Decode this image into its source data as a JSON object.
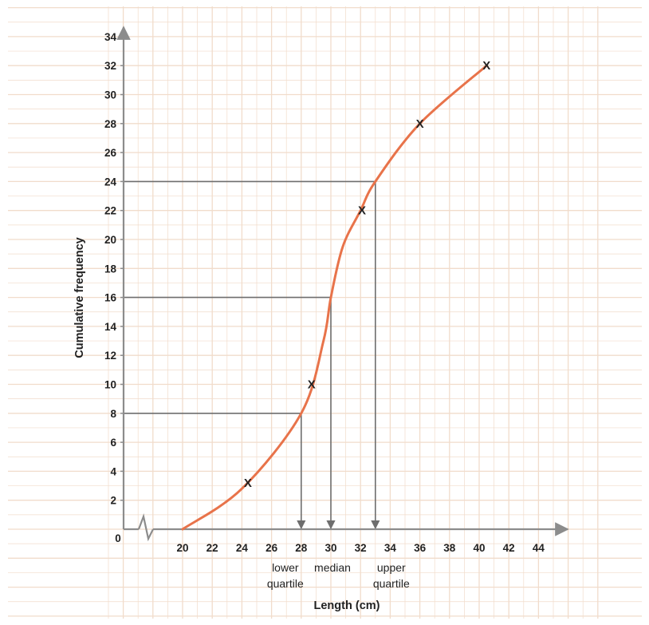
{
  "chart_data": {
    "type": "line",
    "title": "",
    "xlabel": "Length (cm)",
    "ylabel": "Cumulative frequency",
    "xlim": [
      20,
      44
    ],
    "ylim": [
      0,
      34
    ],
    "x_ticks": [
      20,
      22,
      24,
      26,
      28,
      30,
      32,
      34,
      36,
      38,
      40,
      42,
      44
    ],
    "y_ticks": [
      2,
      4,
      6,
      8,
      10,
      12,
      14,
      16,
      18,
      20,
      22,
      24,
      26,
      28,
      30,
      32,
      34
    ],
    "origin_label": "0",
    "x_axis_broken": true,
    "grid": true,
    "colors": {
      "curve": "#e8734a",
      "grid": "#f1dccb",
      "guides": "#6e6e6e",
      "axes": "#8c8c8c"
    },
    "series": [
      {
        "marker": "X",
        "points": [
          {
            "x": 24.4,
            "y": 3.2
          },
          {
            "x": 28.7,
            "y": 10
          },
          {
            "x": 32.1,
            "y": 22
          },
          {
            "x": 36,
            "y": 28
          },
          {
            "x": 40.5,
            "y": 32
          }
        ]
      }
    ],
    "curve": [
      {
        "x": 20,
        "y": 0
      },
      {
        "x": 24,
        "y": 2.8
      },
      {
        "x": 28,
        "y": 8
      },
      {
        "x": 29.5,
        "y": 13
      },
      {
        "x": 30,
        "y": 16
      },
      {
        "x": 30.8,
        "y": 19.5
      },
      {
        "x": 32,
        "y": 22
      },
      {
        "x": 33,
        "y": 24
      },
      {
        "x": 36,
        "y": 28
      },
      {
        "x": 40.5,
        "y": 32
      }
    ],
    "guide_lines": [
      {
        "y": 8,
        "x": 28,
        "label_line1": "lower",
        "label_line2": "quartile"
      },
      {
        "y": 16,
        "x": 30,
        "label_line1": "median",
        "label_line2": ""
      },
      {
        "y": 24,
        "x": 33,
        "label_line1": "upper",
        "label_line2": "quartile"
      }
    ]
  }
}
